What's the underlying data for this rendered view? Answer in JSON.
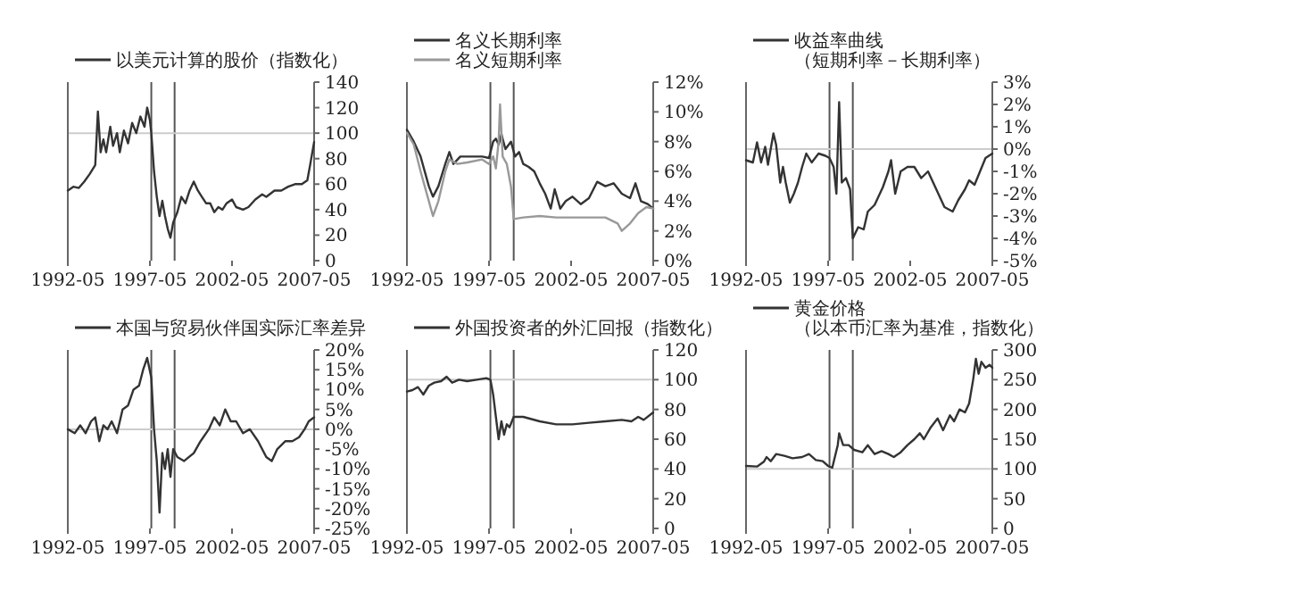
{
  "chart_data": [
    {
      "type": "line",
      "xlim": [
        "1992-05",
        "2007-05"
      ],
      "xticks": [
        "1992-05",
        "1997-05",
        "2002-05",
        "2007-05"
      ],
      "ylim": [
        0,
        140
      ],
      "yticks": [
        0,
        20,
        40,
        60,
        80,
        100,
        120,
        140
      ],
      "legend": "top",
      "ref_lines": [
        {
          "axis": "x",
          "value": "1997-06",
          "color": "#555555"
        },
        {
          "axis": "x",
          "value": "1998-11",
          "color": "#555555"
        },
        {
          "axis": "y",
          "value": 100,
          "color": "#cccccc"
        }
      ],
      "series": [
        {
          "name": "以美元计算的股价（指数化）",
          "color": "#333333",
          "x": [
            "1992-05",
            "1992-09",
            "1993-01",
            "1993-05",
            "1993-09",
            "1994-01",
            "1994-03",
            "1994-05",
            "1994-07",
            "1994-09",
            "1994-12",
            "1995-02",
            "1995-05",
            "1995-07",
            "1995-10",
            "1996-01",
            "1996-04",
            "1996-07",
            "1996-10",
            "1997-01",
            "1997-03",
            "1997-05",
            "1997-06",
            "1997-08",
            "1997-10",
            "1997-12",
            "1998-02",
            "1998-04",
            "1998-06",
            "1998-08",
            "1998-10",
            "1999-01",
            "1999-04",
            "1999-07",
            "1999-10",
            "2000-01",
            "2000-04",
            "2000-07",
            "2000-10",
            "2001-01",
            "2001-04",
            "2001-07",
            "2001-10",
            "2002-01",
            "2002-05",
            "2002-08",
            "2003-01",
            "2003-05",
            "2003-10",
            "2004-03",
            "2004-06",
            "2004-12",
            "2005-05",
            "2005-10",
            "2006-03",
            "2006-08",
            "2006-12",
            "2007-02",
            "2007-05"
          ],
          "values": [
            55,
            58,
            57,
            62,
            68,
            75,
            117,
            85,
            95,
            85,
            105,
            90,
            100,
            85,
            102,
            92,
            108,
            100,
            113,
            105,
            120,
            110,
            100,
            70,
            50,
            35,
            47,
            35,
            25,
            18,
            30,
            38,
            50,
            45,
            55,
            62,
            55,
            50,
            45,
            45,
            38,
            42,
            40,
            45,
            48,
            42,
            40,
            42,
            48,
            52,
            50,
            55,
            55,
            58,
            60,
            60,
            63,
            75,
            93
          ]
        }
      ]
    },
    {
      "type": "line",
      "xlim": [
        "1992-05",
        "2007-05"
      ],
      "xticks": [
        "1992-05",
        "1997-05",
        "2002-05",
        "2007-05"
      ],
      "ylim": [
        0,
        12
      ],
      "yticks": [
        {
          "value": 0,
          "label": "0%"
        },
        {
          "value": 2,
          "label": "2%"
        },
        {
          "value": 4,
          "label": "4%"
        },
        {
          "value": 6,
          "label": "6%"
        },
        {
          "value": 8,
          "label": "8%"
        },
        {
          "value": 10,
          "label": "10%"
        },
        {
          "value": 12,
          "label": "12%"
        }
      ],
      "legend": "top",
      "ref_lines": [
        {
          "axis": "x",
          "value": "1997-06",
          "color": "#555555"
        },
        {
          "axis": "x",
          "value": "1998-11",
          "color": "#555555"
        }
      ],
      "series": [
        {
          "name": "名义长期利率",
          "color": "#333333",
          "x": [
            "1992-05",
            "1992-10",
            "1993-03",
            "1993-09",
            "1993-12",
            "1994-04",
            "1994-09",
            "1994-12",
            "1995-03",
            "1995-08",
            "1996-01",
            "1996-06",
            "1996-12",
            "1997-05",
            "1997-08",
            "1997-10",
            "1997-12",
            "1998-02",
            "1998-05",
            "1998-09",
            "1998-12",
            "1999-03",
            "1999-06",
            "1999-10",
            "2000-02",
            "2000-06",
            "2000-10",
            "2001-02",
            "2001-05",
            "2001-09",
            "2002-01",
            "2002-06",
            "2002-12",
            "2003-06",
            "2003-12",
            "2004-06",
            "2004-12",
            "2005-06",
            "2005-12",
            "2006-04",
            "2006-08",
            "2007-01",
            "2007-05"
          ],
          "values": [
            8.8,
            8,
            7,
            5,
            4.3,
            5,
            6.5,
            7.3,
            6.5,
            7,
            7,
            7,
            7,
            6.9,
            8,
            8.2,
            7.8,
            8.5,
            7.5,
            8,
            7,
            7.3,
            6.5,
            6.3,
            6,
            5.2,
            4.5,
            3.5,
            4.8,
            3.5,
            4,
            4.3,
            3.8,
            4.2,
            5.3,
            5,
            5.2,
            4.5,
            4.2,
            5.2,
            4,
            3.8,
            3.5
          ]
        },
        {
          "name": "名义短期利率",
          "color": "#999999",
          "x": [
            "1992-05",
            "1992-10",
            "1993-03",
            "1993-09",
            "1993-12",
            "1994-04",
            "1994-09",
            "1994-12",
            "1995-06",
            "1996-01",
            "1996-12",
            "1997-05",
            "1997-08",
            "1997-10",
            "1997-12",
            "1998-01",
            "1998-03",
            "1998-06",
            "1998-09",
            "1998-11",
            "1999-06",
            "2000-06",
            "2001-06",
            "2002-06",
            "2003-06",
            "2004-06",
            "2005-03",
            "2005-06",
            "2005-12",
            "2006-06",
            "2006-12",
            "2007-05"
          ],
          "values": [
            8.6,
            7.8,
            6,
            4,
            3,
            4,
            6,
            6.8,
            6.5,
            6.6,
            6.8,
            6.5,
            7,
            6.2,
            8,
            10.5,
            7,
            6.5,
            5,
            2.8,
            2.9,
            3,
            2.9,
            2.9,
            2.9,
            2.9,
            2.5,
            2,
            2.5,
            3.2,
            3.6,
            3.5
          ]
        }
      ]
    },
    {
      "type": "line",
      "xlim": [
        "1992-05",
        "2007-05"
      ],
      "xticks": [
        "1992-05",
        "1997-05",
        "2002-05",
        "2007-05"
      ],
      "ylim": [
        -5,
        3
      ],
      "yticks": [
        {
          "value": -5,
          "label": "-5%"
        },
        {
          "value": -4,
          "label": "-4%"
        },
        {
          "value": -3,
          "label": "-3%"
        },
        {
          "value": -2,
          "label": "-2%"
        },
        {
          "value": -1,
          "label": "-1%"
        },
        {
          "value": 0,
          "label": "0%"
        },
        {
          "value": 1,
          "label": "1%"
        },
        {
          "value": 2,
          "label": "2%"
        },
        {
          "value": 3,
          "label": "3%"
        }
      ],
      "legend": "top",
      "ref_lines": [
        {
          "axis": "x",
          "value": "1997-06",
          "color": "#555555"
        },
        {
          "axis": "x",
          "value": "1998-11",
          "color": "#555555"
        },
        {
          "axis": "y",
          "value": 0,
          "color": "#cccccc"
        }
      ],
      "series": [
        {
          "name": "收益率曲线（短期利率－长期利率）",
          "color": "#333333",
          "x": [
            "1992-05",
            "1992-10",
            "1993-01",
            "1993-04",
            "1993-07",
            "1993-09",
            "1994-01",
            "1994-03",
            "1994-06",
            "1994-08",
            "1994-10",
            "1995-01",
            "1995-04",
            "1995-07",
            "1995-10",
            "1996-01",
            "1996-05",
            "1996-10",
            "1997-03",
            "1997-06",
            "1997-09",
            "1997-11",
            "1998-01",
            "1998-03",
            "1998-06",
            "1998-09",
            "1998-11",
            "1999-03",
            "1999-07",
            "1999-10",
            "2000-03",
            "2000-09",
            "2001-01",
            "2001-03",
            "2001-06",
            "2001-10",
            "2002-03",
            "2002-08",
            "2003-01",
            "2003-06",
            "2003-12",
            "2004-06",
            "2004-12",
            "2005-04",
            "2005-09",
            "2005-12",
            "2006-04",
            "2006-08",
            "2006-12",
            "2007-05"
          ],
          "values": [
            -0.5,
            -0.6,
            0.3,
            -0.6,
            0.1,
            -0.7,
            0.7,
            0.2,
            -1.5,
            -0.8,
            -1.5,
            -2.4,
            -2,
            -1.5,
            -0.8,
            -0.2,
            -0.6,
            -0.2,
            -0.3,
            -0.4,
            -0.8,
            -2,
            2.1,
            -1.5,
            -1.3,
            -1.8,
            -4,
            -3.5,
            -3.6,
            -2.8,
            -2.5,
            -1.7,
            -1,
            -0.5,
            -2,
            -1,
            -0.8,
            -0.8,
            -1.3,
            -1,
            -1.8,
            -2.6,
            -2.8,
            -2.3,
            -1.8,
            -1.4,
            -1.6,
            -1,
            -0.4,
            -0.2
          ]
        }
      ]
    },
    {
      "type": "line",
      "xlim": [
        "1992-05",
        "2007-05"
      ],
      "xticks": [
        "1992-05",
        "1997-05",
        "2002-05",
        "2007-05"
      ],
      "ylim": [
        -25,
        20
      ],
      "yticks": [
        {
          "value": -25,
          "label": "-25%"
        },
        {
          "value": -20,
          "label": "-20%"
        },
        {
          "value": -15,
          "label": "-15%"
        },
        {
          "value": -10,
          "label": "-10%"
        },
        {
          "value": -5,
          "label": "-5%"
        },
        {
          "value": 0,
          "label": "0%"
        },
        {
          "value": 5,
          "label": "5%"
        },
        {
          "value": 10,
          "label": "10%"
        },
        {
          "value": 15,
          "label": "15%"
        },
        {
          "value": 20,
          "label": "20%"
        }
      ],
      "legend": "top",
      "ref_lines": [
        {
          "axis": "x",
          "value": "1997-06",
          "color": "#555555"
        },
        {
          "axis": "x",
          "value": "1998-11",
          "color": "#555555"
        },
        {
          "axis": "y",
          "value": 0,
          "color": "#cccccc"
        }
      ],
      "series": [
        {
          "name": "本国与贸易伙伴国实际汇率差异",
          "color": "#333333",
          "x": [
            "1992-05",
            "1992-10",
            "1993-02",
            "1993-06",
            "1993-10",
            "1994-01",
            "1994-04",
            "1994-07",
            "1994-10",
            "1995-01",
            "1995-05",
            "1995-09",
            "1996-01",
            "1996-05",
            "1996-09",
            "1996-12",
            "1997-03",
            "1997-06",
            "1997-08",
            "1997-10",
            "1997-12",
            "1998-02",
            "1998-04",
            "1998-06",
            "1998-08",
            "1998-10",
            "1999-01",
            "1999-06",
            "2000-01",
            "2000-06",
            "2000-12",
            "2001-04",
            "2001-08",
            "2001-12",
            "2002-04",
            "2002-08",
            "2003-01",
            "2003-06",
            "2003-12",
            "2004-06",
            "2004-10",
            "2005-02",
            "2005-08",
            "2006-01",
            "2006-06",
            "2006-10",
            "2007-01",
            "2007-05"
          ],
          "values": [
            0,
            -1,
            1,
            -1,
            2,
            3,
            -3,
            1,
            0,
            2,
            -1,
            5,
            6,
            10,
            11,
            15,
            18,
            13,
            0,
            -8,
            -21,
            -6,
            -10,
            -5,
            -12,
            -5,
            -7,
            -8,
            -6,
            -3,
            0,
            3,
            1,
            5,
            2,
            2,
            -1,
            0,
            -3,
            -7,
            -8,
            -5,
            -3,
            -3,
            -2,
            0,
            2,
            3
          ]
        }
      ]
    },
    {
      "type": "line",
      "xlim": [
        "1992-05",
        "2007-05"
      ],
      "xticks": [
        "1992-05",
        "1997-05",
        "2002-05",
        "2007-05"
      ],
      "ylim": [
        0,
        120
      ],
      "yticks": [
        0,
        20,
        40,
        60,
        80,
        100,
        120
      ],
      "legend": "top",
      "ref_lines": [
        {
          "axis": "x",
          "value": "1997-06",
          "color": "#555555"
        },
        {
          "axis": "x",
          "value": "1998-11",
          "color": "#555555"
        },
        {
          "axis": "y",
          "value": 100,
          "color": "#cccccc"
        }
      ],
      "series": [
        {
          "name": "外国投资者的外汇回报（指数化）",
          "color": "#333333",
          "x": [
            "1992-05",
            "1992-09",
            "1993-01",
            "1993-05",
            "1993-09",
            "1994-01",
            "1994-06",
            "1994-10",
            "1995-02",
            "1995-07",
            "1996-01",
            "1996-08",
            "1997-03",
            "1997-06",
            "1997-08",
            "1997-10",
            "1997-12",
            "1998-02",
            "1998-04",
            "1998-06",
            "1998-08",
            "1998-11",
            "1999-06",
            "2000-06",
            "2001-06",
            "2002-06",
            "2003-06",
            "2004-06",
            "2005-06",
            "2006-01",
            "2006-06",
            "2006-10",
            "2007-05"
          ],
          "values": [
            92,
            93,
            95,
            90,
            96,
            98,
            99,
            102,
            98,
            100,
            99,
            100,
            101,
            100,
            90,
            75,
            60,
            72,
            63,
            70,
            68,
            75,
            75,
            72,
            70,
            70,
            71,
            72,
            73,
            72,
            75,
            73,
            78
          ]
        }
      ]
    },
    {
      "type": "line",
      "xlim": [
        "1992-05",
        "2007-05"
      ],
      "xticks": [
        "1992-05",
        "1997-05",
        "2002-05",
        "2007-05"
      ],
      "ylim": [
        0,
        300
      ],
      "yticks": [
        0,
        50,
        100,
        150,
        200,
        250,
        300
      ],
      "legend": "top",
      "ref_lines": [
        {
          "axis": "x",
          "value": "1997-06",
          "color": "#555555"
        },
        {
          "axis": "x",
          "value": "1998-11",
          "color": "#555555"
        },
        {
          "axis": "y",
          "value": 100,
          "color": "#cccccc"
        }
      ],
      "series": [
        {
          "name": "黄金价格（以本币汇率为基准，指数化）",
          "color": "#333333",
          "x": [
            "1992-05",
            "1993-01",
            "1993-06",
            "1993-08",
            "1993-11",
            "1994-03",
            "1994-09",
            "1995-03",
            "1995-10",
            "1996-03",
            "1996-08",
            "1997-01",
            "1997-05",
            "1997-08",
            "1997-12",
            "1998-01",
            "1998-04",
            "1998-08",
            "1998-12",
            "1999-06",
            "1999-10",
            "2000-03",
            "2000-08",
            "2001-01",
            "2001-05",
            "2001-10",
            "2002-03",
            "2002-08",
            "2002-12",
            "2003-03",
            "2003-08",
            "2004-01",
            "2004-05",
            "2004-10",
            "2005-01",
            "2005-05",
            "2005-09",
            "2005-12",
            "2006-03",
            "2006-05",
            "2006-07",
            "2006-09",
            "2006-12",
            "2007-03",
            "2007-05"
          ],
          "values": [
            105,
            104,
            112,
            120,
            113,
            125,
            122,
            118,
            120,
            125,
            115,
            113,
            105,
            102,
            140,
            160,
            140,
            140,
            132,
            128,
            140,
            125,
            130,
            125,
            120,
            128,
            140,
            150,
            160,
            150,
            170,
            185,
            165,
            190,
            180,
            200,
            195,
            210,
            250,
            285,
            260,
            280,
            270,
            275,
            270
          ]
        }
      ]
    }
  ]
}
